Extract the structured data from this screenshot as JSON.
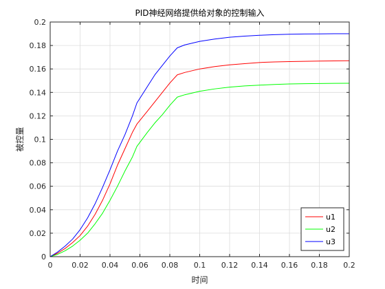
{
  "chart_data": {
    "type": "line",
    "title": "PID神经网络提供给对象的控制输入",
    "xlabel": "时间",
    "ylabel": "被控量",
    "xlim": [
      0,
      0.2
    ],
    "ylim": [
      0,
      0.2
    ],
    "xticks": [
      0,
      0.02,
      0.04,
      0.06,
      0.08,
      0.1,
      0.12,
      0.14,
      0.16,
      0.18,
      0.2
    ],
    "xtick_labels": [
      "0",
      "0.02",
      "0.04",
      "0.06",
      "0.08",
      "0.1",
      "0.12",
      "0.14",
      "0.16",
      "0.18",
      "0.2"
    ],
    "yticks": [
      0,
      0.02,
      0.04,
      0.06,
      0.08,
      0.1,
      0.12,
      0.14,
      0.16,
      0.18,
      0.2
    ],
    "ytick_labels": [
      "0",
      "0.02",
      "0.04",
      "0.06",
      "0.08",
      "0.1",
      "0.12",
      "0.14",
      "0.16",
      "0.18",
      "0.2"
    ],
    "grid": true,
    "legend_position": "bottom-right",
    "series": [
      {
        "name": "u1",
        "color": "#ff0000",
        "x": [
          0,
          0.005,
          0.01,
          0.015,
          0.02,
          0.025,
          0.03,
          0.035,
          0.04,
          0.045,
          0.05,
          0.055,
          0.058,
          0.065,
          0.07,
          0.075,
          0.08,
          0.085,
          0.09,
          0.1,
          0.11,
          0.12,
          0.13,
          0.14,
          0.15,
          0.16,
          0.17,
          0.18,
          0.19,
          0.2
        ],
        "y": [
          0,
          0.003,
          0.007,
          0.012,
          0.018,
          0.026,
          0.036,
          0.048,
          0.062,
          0.078,
          0.092,
          0.106,
          0.113,
          0.124,
          0.132,
          0.14,
          0.148,
          0.155,
          0.157,
          0.16,
          0.162,
          0.1635,
          0.1645,
          0.1655,
          0.166,
          0.1663,
          0.1665,
          0.1667,
          0.1669,
          0.167
        ]
      },
      {
        "name": "u2",
        "color": "#00ff00",
        "x": [
          0,
          0.005,
          0.01,
          0.015,
          0.02,
          0.025,
          0.03,
          0.035,
          0.04,
          0.045,
          0.05,
          0.055,
          0.058,
          0.065,
          0.07,
          0.075,
          0.08,
          0.085,
          0.09,
          0.1,
          0.11,
          0.12,
          0.13,
          0.14,
          0.15,
          0.16,
          0.17,
          0.18,
          0.19,
          0.2
        ],
        "y": [
          0,
          0.002,
          0.005,
          0.009,
          0.014,
          0.02,
          0.028,
          0.037,
          0.048,
          0.06,
          0.073,
          0.085,
          0.094,
          0.106,
          0.114,
          0.121,
          0.129,
          0.136,
          0.138,
          0.141,
          0.143,
          0.1445,
          0.1455,
          0.1462,
          0.1468,
          0.1472,
          0.1474,
          0.1476,
          0.1477,
          0.1478
        ]
      },
      {
        "name": "u3",
        "color": "#0000ff",
        "x": [
          0,
          0.005,
          0.01,
          0.015,
          0.02,
          0.025,
          0.03,
          0.035,
          0.04,
          0.045,
          0.05,
          0.055,
          0.058,
          0.065,
          0.07,
          0.075,
          0.08,
          0.085,
          0.09,
          0.1,
          0.11,
          0.12,
          0.13,
          0.14,
          0.15,
          0.16,
          0.17,
          0.18,
          0.19,
          0.2
        ],
        "y": [
          0,
          0.004,
          0.009,
          0.015,
          0.023,
          0.033,
          0.045,
          0.059,
          0.074,
          0.09,
          0.104,
          0.12,
          0.131,
          0.145,
          0.155,
          0.163,
          0.171,
          0.178,
          0.1805,
          0.1835,
          0.1855,
          0.187,
          0.188,
          0.1887,
          0.1892,
          0.1896,
          0.1898,
          0.1899,
          0.19,
          0.19
        ]
      }
    ]
  }
}
